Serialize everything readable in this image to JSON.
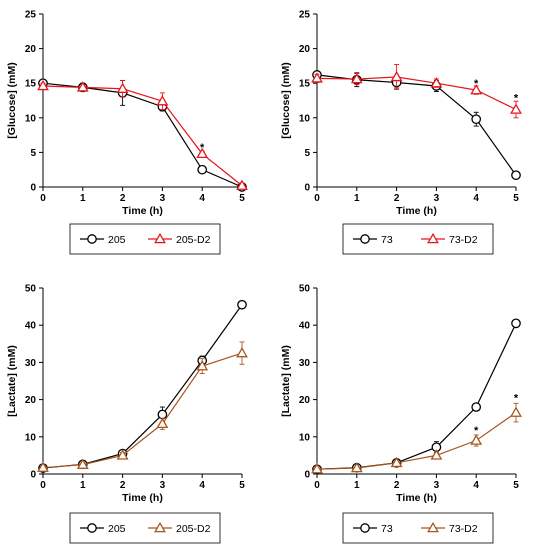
{
  "chart_data": [
    {
      "type": "line",
      "xlabel": "Time (h)",
      "ylabel": "[Glucose] (mM)",
      "xlim": [
        0,
        5
      ],
      "ylim": [
        0,
        25
      ],
      "xticks": [
        "0",
        "1",
        "2",
        "3",
        "4",
        "5"
      ],
      "yticks": [
        "0",
        "5",
        "10",
        "15",
        "20",
        "25"
      ],
      "grid": false,
      "legend_position": "bottom",
      "x": [
        0,
        1,
        2,
        3,
        4,
        5
      ],
      "series": [
        {
          "name": "205",
          "marker": "circle",
          "color": "#000000",
          "values": [
            15.0,
            14.4,
            13.6,
            11.6,
            2.5,
            0.0
          ],
          "errors": [
            0.4,
            0.6,
            1.8,
            0.6,
            0.4,
            0.2
          ]
        },
        {
          "name": "205-D2",
          "marker": "triangle",
          "color": "#e8141c",
          "values": [
            14.6,
            14.4,
            14.2,
            12.4,
            4.8,
            0.2
          ],
          "errors": [
            0.4,
            0.4,
            1.2,
            1.2,
            0.4,
            0.2
          ]
        }
      ],
      "annotations": [
        {
          "x": 4,
          "y": 5.8,
          "text": "*"
        }
      ]
    },
    {
      "type": "line",
      "xlabel": "Time (h)",
      "ylabel": "[Glucose] (mM)",
      "xlim": [
        0,
        5
      ],
      "ylim": [
        0,
        25
      ],
      "xticks": [
        "0",
        "1",
        "2",
        "3",
        "4",
        "5"
      ],
      "yticks": [
        "0",
        "5",
        "10",
        "15",
        "20",
        "25"
      ],
      "grid": false,
      "legend_position": "bottom",
      "x": [
        0,
        1,
        2,
        3,
        4,
        5
      ],
      "series": [
        {
          "name": "73",
          "marker": "circle",
          "color": "#000000",
          "values": [
            16.2,
            15.5,
            15.1,
            14.6,
            9.8,
            1.7
          ],
          "errors": [
            0.4,
            1.0,
            0.8,
            0.8,
            1.0,
            0.4
          ]
        },
        {
          "name": "73-D2",
          "marker": "triangle",
          "color": "#e8141c",
          "values": [
            15.7,
            15.6,
            15.9,
            15.0,
            14.0,
            11.2
          ],
          "errors": [
            0.6,
            0.8,
            1.8,
            0.6,
            0.6,
            1.2
          ]
        }
      ],
      "annotations": [
        {
          "x": 4,
          "y": 15.0,
          "text": "*"
        },
        {
          "x": 5,
          "y": 12.9,
          "text": "*"
        }
      ]
    },
    {
      "type": "line",
      "xlabel": "Time (h)",
      "ylabel": "[Lactate] (mM)",
      "xlim": [
        0,
        5
      ],
      "ylim": [
        0,
        50
      ],
      "xticks": [
        "0",
        "1",
        "2",
        "3",
        "4",
        "5"
      ],
      "yticks": [
        "0",
        "10",
        "20",
        "30",
        "40",
        "50"
      ],
      "grid": false,
      "legend_position": "bottom",
      "x": [
        0,
        1,
        2,
        3,
        4,
        5
      ],
      "series": [
        {
          "name": "205",
          "marker": "circle",
          "color": "#000000",
          "values": [
            1.6,
            2.6,
            5.5,
            16.0,
            30.5,
            45.5
          ],
          "errors": [
            0.3,
            0.5,
            0.8,
            2.0,
            1.2,
            1.0
          ]
        },
        {
          "name": "205-D2",
          "marker": "triangle",
          "color": "#a8551e",
          "values": [
            1.7,
            2.5,
            5.0,
            13.5,
            29.0,
            32.5
          ],
          "errors": [
            0.3,
            0.5,
            0.8,
            1.5,
            2.0,
            3.0
          ]
        }
      ],
      "annotations": []
    },
    {
      "type": "line",
      "xlabel": "Time (h)",
      "ylabel": "[Lactate] (mM)",
      "xlim": [
        0,
        5
      ],
      "ylim": [
        0,
        50
      ],
      "xticks": [
        "0",
        "1",
        "2",
        "3",
        "4",
        "5"
      ],
      "yticks": [
        "0",
        "10",
        "20",
        "30",
        "40",
        "50"
      ],
      "grid": false,
      "legend_position": "bottom",
      "x": [
        0,
        1,
        2,
        3,
        4,
        5
      ],
      "series": [
        {
          "name": "73",
          "marker": "circle",
          "color": "#000000",
          "values": [
            1.3,
            1.7,
            3.0,
            7.2,
            18.0,
            40.5
          ],
          "errors": [
            0.3,
            0.4,
            0.5,
            1.5,
            0.8,
            0.6
          ]
        },
        {
          "name": "73-D2",
          "marker": "triangle",
          "color": "#a8551e",
          "values": [
            1.3,
            1.6,
            3.0,
            5.0,
            9.0,
            16.5
          ],
          "errors": [
            0.3,
            0.4,
            0.5,
            0.8,
            1.5,
            2.5
          ]
        }
      ],
      "annotations": [
        {
          "x": 4,
          "y": 11.8,
          "text": "*"
        },
        {
          "x": 5,
          "y": 20.5,
          "text": "*"
        }
      ]
    }
  ]
}
